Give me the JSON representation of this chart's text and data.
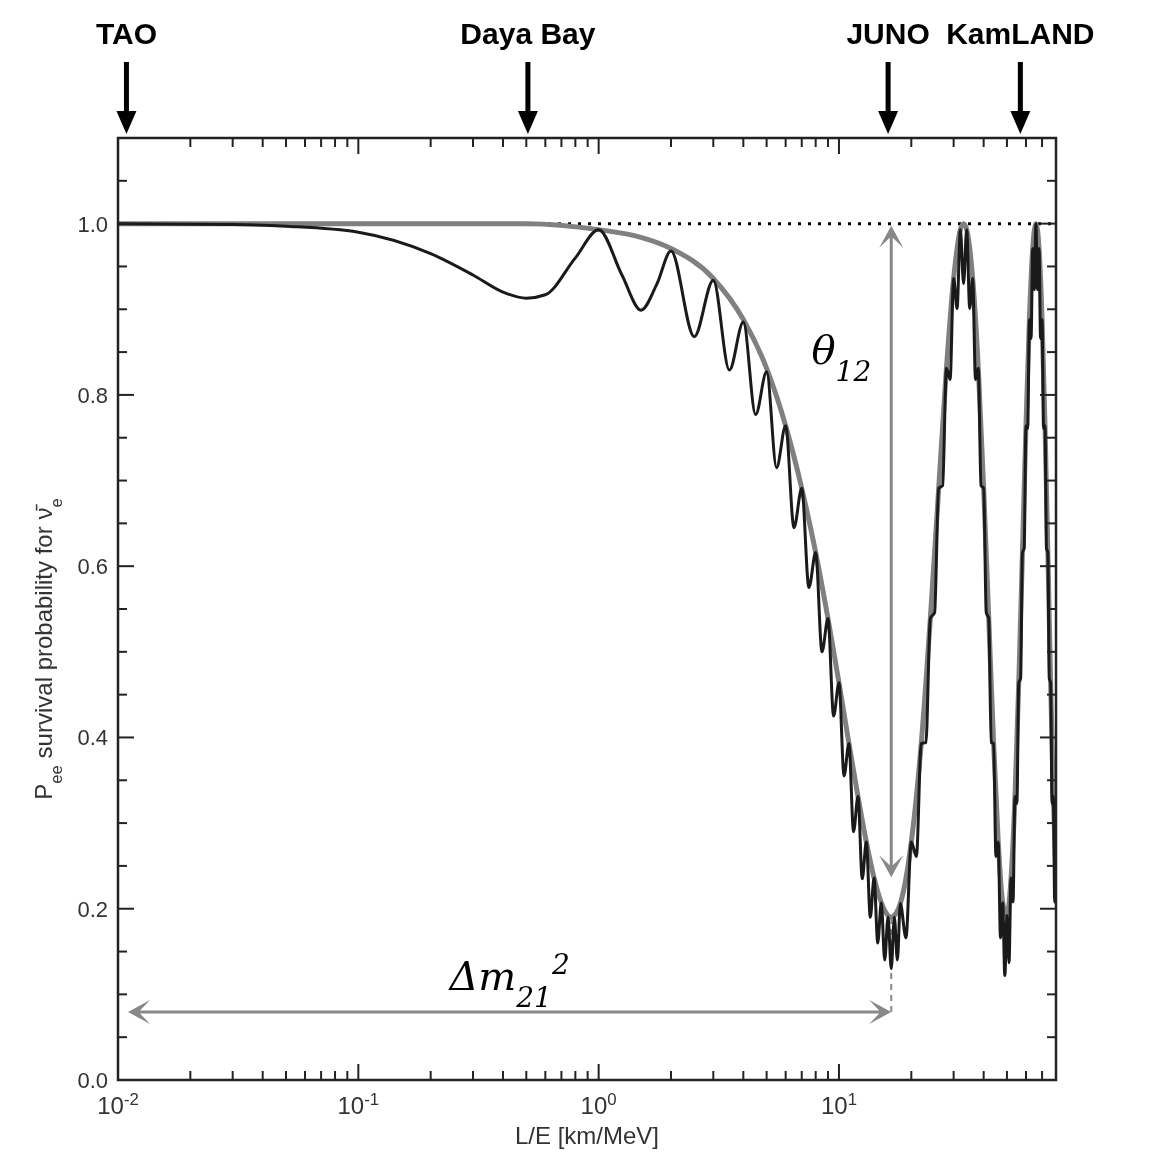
{
  "chart_data": {
    "type": "line",
    "xlabel": "L/E [km/MeV]",
    "ylabel": "P$_{ee}$ survival probability for ν̄$_{e}$",
    "log": "x",
    "xlim": [
      0.01,
      80
    ],
    "ylim": [
      0,
      1.1
    ],
    "xticks": [
      {
        "value": 0.01,
        "label": "10$^{-2}$"
      },
      {
        "value": 0.02,
        "label": null
      },
      {
        "value": 0.03,
        "label": null
      },
      {
        "value": 0.04,
        "label": null
      },
      {
        "value": 0.05,
        "label": null
      },
      {
        "value": 0.06,
        "label": null
      },
      {
        "value": 0.07,
        "label": null
      },
      {
        "value": 0.08,
        "label": null
      },
      {
        "value": 0.09,
        "label": null
      },
      {
        "value": 0.1,
        "label": "10$^{-1}$"
      },
      {
        "value": 0.2,
        "label": null
      },
      {
        "value": 0.3,
        "label": null
      },
      {
        "value": 0.4,
        "label": null
      },
      {
        "value": 0.5,
        "label": null
      },
      {
        "value": 0.6,
        "label": null
      },
      {
        "value": 0.7,
        "label": null
      },
      {
        "value": 0.8,
        "label": null
      },
      {
        "value": 0.9,
        "label": null
      },
      {
        "value": 1,
        "label": "10$^{0}$"
      },
      {
        "value": 2,
        "label": null
      },
      {
        "value": 3,
        "label": null
      },
      {
        "value": 4,
        "label": null
      },
      {
        "value": 5,
        "label": null
      },
      {
        "value": 6,
        "label": null
      },
      {
        "value": 7,
        "label": null
      },
      {
        "value": 8,
        "label": null
      },
      {
        "value": 9,
        "label": null
      },
      {
        "value": 10,
        "label": "10$^{1}$"
      },
      {
        "value": 20,
        "label": null
      },
      {
        "value": 30,
        "label": null
      },
      {
        "value": 40,
        "label": null
      },
      {
        "value": 50,
        "label": null
      },
      {
        "value": 60,
        "label": null
      },
      {
        "value": 70,
        "label": null
      }
    ],
    "yticks": [
      {
        "value": 0,
        "label": "0.0"
      },
      {
        "value": 0.05,
        "label": null
      },
      {
        "value": 0.1,
        "label": null
      },
      {
        "value": 0.15,
        "label": null
      },
      {
        "value": 0.2,
        "label": "0.2"
      },
      {
        "value": 0.25,
        "label": null
      },
      {
        "value": 0.3,
        "label": null
      },
      {
        "value": 0.35,
        "label": null
      },
      {
        "value": 0.4,
        "label": "0.4"
      },
      {
        "value": 0.45,
        "label": null
      },
      {
        "value": 0.5,
        "label": null
      },
      {
        "value": 0.55,
        "label": null
      },
      {
        "value": 0.6,
        "label": "0.6"
      },
      {
        "value": 0.65,
        "label": null
      },
      {
        "value": 0.7,
        "label": null
      },
      {
        "value": 0.75,
        "label": null
      },
      {
        "value": 0.8,
        "label": "0.8"
      },
      {
        "value": 0.85,
        "label": null
      },
      {
        "value": 0.9,
        "label": null
      },
      {
        "value": 0.95,
        "label": null
      },
      {
        "value": 1.0,
        "label": "1.0"
      },
      {
        "value": 1.05,
        "label": null
      }
    ],
    "ref_lines": [
      {
        "axis": "y",
        "value": 1.0,
        "color": "#000000",
        "line_style": "dotted"
      }
    ],
    "series": [
      {
        "color": "#808080",
        "x": [
          0.01,
          0.1,
          0.3,
          0.5,
          1,
          1.5,
          2,
          3,
          4,
          5,
          6,
          7,
          8,
          9,
          10,
          11,
          12,
          13,
          14,
          15,
          16,
          16.5,
          17,
          18,
          20,
          22,
          24,
          26,
          28,
          30,
          32,
          33,
          34,
          36,
          38,
          40,
          42,
          44,
          46,
          48,
          50,
          52,
          54,
          56,
          58,
          60,
          62,
          64,
          66,
          68,
          70,
          72,
          74,
          76,
          78,
          80
        ],
        "values": [
          1.0,
          1.0,
          1.0,
          1.0,
          0.993,
          0.984,
          0.971,
          0.936,
          0.888,
          0.831,
          0.764,
          0.691,
          0.616,
          0.539,
          0.464,
          0.393,
          0.331,
          0.278,
          0.236,
          0.207,
          0.192,
          0.19,
          0.192,
          0.206,
          0.278,
          0.393,
          0.539,
          0.691,
          0.831,
          0.936,
          0.993,
          1.0,
          0.993,
          0.936,
          0.831,
          0.691,
          0.539,
          0.393,
          0.278,
          0.207,
          0.192,
          0.236,
          0.331,
          0.464,
          0.616,
          0.764,
          0.888,
          0.971,
          1.0,
          0.971,
          0.888,
          0.764,
          0.616,
          0.464,
          0.331,
          0.236
        ]
      },
      {
        "color": "#1a1a1a",
        "x": [
          0.01,
          0.03,
          0.05,
          0.1,
          0.2,
          0.3,
          0.4,
          0.5,
          0.6,
          0.8,
          1.0,
          1.25,
          1.5,
          1.75,
          2,
          2.5,
          3,
          3.5,
          4,
          4.5,
          5,
          5.5,
          6,
          6.5,
          7,
          7.5,
          8,
          8.5,
          9,
          9.5,
          10,
          10.5,
          11,
          11.5,
          12,
          12.5,
          13,
          13.5,
          14,
          14.5,
          15,
          15.5,
          16,
          16.5,
          17,
          17.5,
          18,
          19,
          20,
          21,
          22,
          23,
          24,
          25,
          26,
          27,
          28,
          29,
          30,
          31,
          32,
          33,
          34,
          35,
          36,
          37,
          38,
          39,
          40,
          41,
          42,
          43,
          44,
          45,
          46,
          47,
          48,
          49,
          50,
          51,
          52,
          53,
          54,
          55,
          56,
          57,
          58,
          59,
          60,
          61,
          62,
          63,
          64,
          65,
          66,
          67,
          68,
          69,
          70,
          71,
          72,
          73,
          74,
          75,
          76,
          77,
          78,
          79,
          80
        ],
        "values": [
          1.0,
          0.999,
          0.997,
          0.99,
          0.965,
          0.94,
          0.92,
          0.913,
          0.917,
          0.96,
          0.993,
          0.94,
          0.899,
          0.93,
          0.968,
          0.868,
          0.934,
          0.829,
          0.885,
          0.777,
          0.827,
          0.715,
          0.764,
          0.645,
          0.691,
          0.575,
          0.616,
          0.5,
          0.539,
          0.425,
          0.464,
          0.355,
          0.393,
          0.29,
          0.331,
          0.235,
          0.278,
          0.19,
          0.236,
          0.16,
          0.207,
          0.14,
          0.19,
          0.13,
          0.19,
          0.14,
          0.206,
          0.166,
          0.278,
          0.261,
          0.393,
          0.394,
          0.539,
          0.546,
          0.691,
          0.694,
          0.831,
          0.818,
          0.936,
          0.901,
          0.993,
          0.93,
          0.993,
          0.901,
          0.936,
          0.818,
          0.831,
          0.694,
          0.691,
          0.546,
          0.539,
          0.394,
          0.393,
          0.261,
          0.278,
          0.166,
          0.207,
          0.122,
          0.192,
          0.137,
          0.236,
          0.208,
          0.331,
          0.323,
          0.464,
          0.469,
          0.616,
          0.621,
          0.764,
          0.761,
          0.888,
          0.866,
          0.971,
          0.923,
          1.0,
          0.923,
          0.971,
          0.866,
          0.888,
          0.761,
          0.764,
          0.621,
          0.616,
          0.469,
          0.464,
          0.323,
          0.331,
          0.208,
          0.236
        ]
      }
    ],
    "annotations": [
      "TAO",
      "Daya Bay",
      "JUNO",
      "KamLAND",
      "θ$_{12}$",
      "Δm$_{21}$$^{2}$"
    ]
  }
}
